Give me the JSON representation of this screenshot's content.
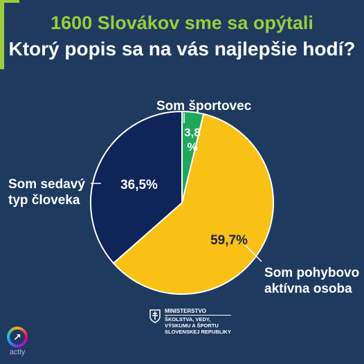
{
  "header": {
    "headline": "1600 Slovákov sme sa opýtali",
    "question": "Ktorý popis sa na vás najlepšie hodí?"
  },
  "chart_data": {
    "type": "pie",
    "title": "Ktorý popis sa na vás najlepšie hodí?",
    "slices": [
      {
        "label": "Som športovec",
        "value": 3.8,
        "value_label": "3,8 %",
        "color": "#1fa85a"
      },
      {
        "label": "Som pohybovo aktívna osoba",
        "value": 59.7,
        "value_label": "59,7%",
        "color": "#f9c116"
      },
      {
        "label": "Som sedavý typ človeka",
        "value": 36.5,
        "value_label": "36,5%",
        "color": "#0f2458"
      }
    ],
    "label_lines": {
      "sport": "Som športovec",
      "active_1": "Som pohybovo",
      "active_2": "aktívna osoba",
      "sedentary_1": "Som sedavý",
      "sedentary_2": "typ človeka"
    },
    "pct_lines": {
      "sport_1": "3,8",
      "sport_2": "%"
    }
  },
  "footer": {
    "actly": "actly",
    "ministry_title": "MINISTERSTVO",
    "ministry_lines": [
      "ŠKOLSTVA, VEDY,",
      "VÝSKUMU A ŠPORTU",
      "SLOVENSKEJ REPUBLIKY"
    ]
  },
  "colors": {
    "background": "#1f3a5f",
    "accent": "#9ccc3d"
  }
}
